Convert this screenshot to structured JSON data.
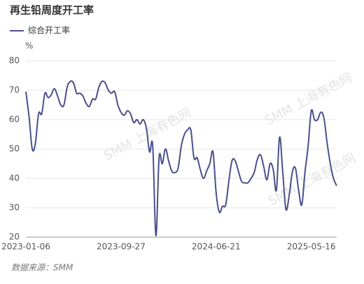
{
  "chart_data": {
    "type": "line",
    "title": "再生铅周度开工率",
    "y_label": "%",
    "source": "数据来源：SMM",
    "watermark": "SMM 上海有色网",
    "categories": [
      "2023-01-06",
      null,
      null,
      null,
      null,
      null,
      null,
      null,
      null,
      null,
      null,
      null,
      null,
      null,
      null,
      null,
      null,
      null,
      null,
      null,
      null,
      null,
      null,
      null,
      null,
      null,
      null,
      null,
      null,
      null,
      "2023-09-27",
      null,
      null,
      null,
      null,
      null,
      null,
      null,
      null,
      null,
      null,
      null,
      null,
      null,
      null,
      null,
      null,
      null,
      null,
      null,
      null,
      null,
      null,
      null,
      null,
      null,
      null,
      null,
      null,
      null,
      "2024-06-21",
      null,
      null,
      null,
      null,
      null,
      null,
      null,
      null,
      null,
      null,
      null,
      null,
      null,
      null,
      null,
      null,
      null,
      null,
      null,
      null,
      null,
      null,
      null,
      null,
      null,
      null,
      null,
      null,
      null,
      "2025-05-16",
      null,
      null,
      null,
      null,
      null,
      null,
      null,
      null
    ],
    "series": [
      {
        "name": "综合开工率",
        "color": "#4b4f8c",
        "values": [
          69.5,
          61,
          50,
          52,
          62,
          62,
          69,
          67.5,
          68.5,
          70.5,
          68,
          65,
          65,
          71,
          73,
          72.5,
          69,
          69,
          68,
          65.5,
          64.5,
          67,
          67,
          71,
          73,
          72.5,
          70,
          69,
          69.5,
          65,
          62.5,
          61.5,
          63,
          62,
          59,
          60,
          58.5,
          60,
          57,
          49,
          51,
          20.5,
          47,
          45,
          50,
          46,
          42.5,
          42,
          43.5,
          51,
          55,
          56.5,
          56.5,
          47,
          47,
          43,
          40,
          42.5,
          45,
          49,
          35,
          28.5,
          30.5,
          31,
          39,
          46,
          46,
          42.5,
          39,
          38.5,
          38.5,
          40,
          42,
          46.5,
          48,
          44,
          39.5,
          45,
          43,
          36,
          54,
          42,
          29.5,
          34,
          42,
          43.5,
          36,
          31,
          42,
          51,
          63,
          60,
          60,
          62.5,
          60.5,
          52,
          45,
          40,
          37.5
        ]
      }
    ],
    "ylim": [
      20,
      80
    ],
    "yticks": [
      20,
      30,
      40,
      50,
      60,
      70,
      80
    ],
    "grid": true
  }
}
